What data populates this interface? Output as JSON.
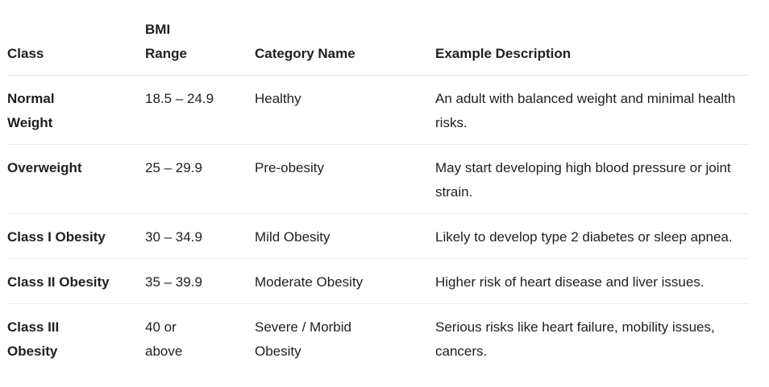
{
  "table": {
    "headers": {
      "class": "Class",
      "bmi_range_line1": "BMI",
      "bmi_range_line2": "Range",
      "category_name": "Category Name",
      "example_description": "Example Description"
    },
    "rows": [
      {
        "class": "Normal Weight",
        "bmi_range": "18.5 – 24.9",
        "category_name": "Healthy",
        "example_description": "An adult with balanced weight and minimal health risks."
      },
      {
        "class": "Overweight",
        "bmi_range": "25 – 29.9",
        "category_name": "Pre-obesity",
        "example_description": "May start developing high blood pressure or joint strain."
      },
      {
        "class": "Class I Obesity",
        "bmi_range": "30 – 34.9",
        "category_name": "Mild Obesity",
        "example_description": "Likely to develop type 2 diabetes or sleep apnea."
      },
      {
        "class": "Class II Obesity",
        "bmi_range": "35 – 39.9",
        "category_name": "Moderate Obesity",
        "example_description": "Higher risk of heart disease and liver issues."
      },
      {
        "class": "Class III Obesity",
        "bmi_range": "40 or above",
        "category_name": "Severe / Morbid Obesity",
        "example_description": "Serious risks like heart failure, mobility issues, cancers."
      }
    ]
  }
}
